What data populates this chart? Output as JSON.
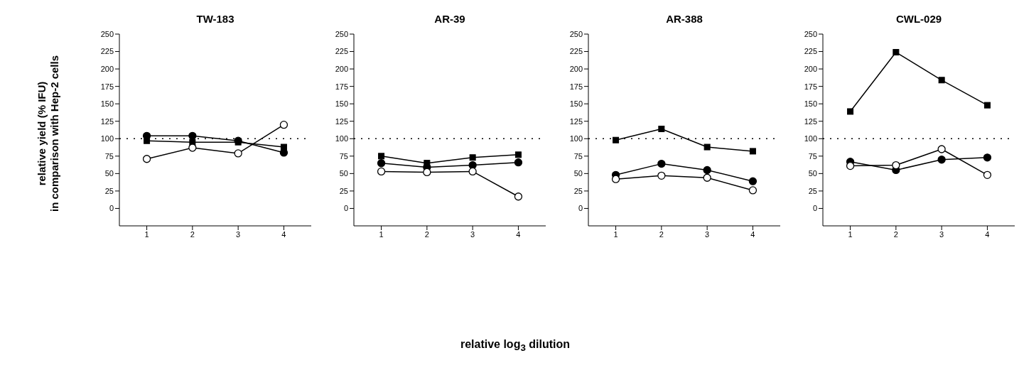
{
  "chart_data": [
    {
      "type": "line",
      "title": "TW-183",
      "ylabel": "relative yield (% IFU)\nin comparison with Hep-2 cells",
      "x": [
        1,
        2,
        3,
        4
      ],
      "xlim": [
        0.4,
        4.6
      ],
      "xticks": [
        1,
        2,
        3,
        4
      ],
      "ylim": [
        -25,
        250
      ],
      "yticks": [
        0,
        25,
        50,
        75,
        100,
        125,
        150,
        175,
        200,
        225,
        250
      ],
      "grid": false,
      "legend": false,
      "line_style": "solid",
      "ref_lines": [
        {
          "axis": "y",
          "value": 100,
          "line_style": "dotted",
          "color": "#000000"
        }
      ],
      "series": [
        {
          "color": "#000000",
          "marker": "circle",
          "values": [
            104,
            104,
            97,
            80
          ]
        },
        {
          "color": "#000000",
          "marker": "square",
          "values": [
            97,
            95,
            95,
            88
          ]
        },
        {
          "color": "#000000",
          "marker": "circle",
          "colors": [
            "#ffffff",
            "#ffffff",
            "#ffffff",
            "#ffffff"
          ],
          "values": [
            71,
            87,
            79,
            120
          ]
        }
      ]
    },
    {
      "type": "line",
      "title": "AR-39",
      "xlabel": "relative log$_{3}$ dilution",
      "x": [
        1,
        2,
        3,
        4
      ],
      "xlim": [
        0.4,
        4.6
      ],
      "xticks": [
        1,
        2,
        3,
        4
      ],
      "ylim": [
        -25,
        250
      ],
      "yticks": [
        0,
        25,
        50,
        75,
        100,
        125,
        150,
        175,
        200,
        225,
        250
      ],
      "grid": false,
      "legend": false,
      "line_style": "solid",
      "ref_lines": [
        {
          "axis": "y",
          "value": 100,
          "line_style": "dotted",
          "color": "#000000"
        }
      ],
      "series": [
        {
          "color": "#000000",
          "marker": "circle",
          "values": [
            65,
            59,
            62,
            66
          ]
        },
        {
          "color": "#000000",
          "marker": "square",
          "values": [
            75,
            65,
            73,
            77
          ]
        },
        {
          "color": "#000000",
          "marker": "circle",
          "colors": [
            "#ffffff",
            "#ffffff",
            "#ffffff",
            "#ffffff"
          ],
          "values": [
            53,
            52,
            53,
            17
          ]
        }
      ]
    },
    {
      "type": "line",
      "title": "AR-388",
      "x": [
        1,
        2,
        3,
        4
      ],
      "xlim": [
        0.4,
        4.6
      ],
      "xticks": [
        1,
        2,
        3,
        4
      ],
      "ylim": [
        -25,
        250
      ],
      "yticks": [
        0,
        25,
        50,
        75,
        100,
        125,
        150,
        175,
        200,
        225,
        250
      ],
      "grid": false,
      "legend": false,
      "line_style": "solid",
      "ref_lines": [
        {
          "axis": "y",
          "value": 100,
          "line_style": "dotted",
          "color": "#000000"
        }
      ],
      "series": [
        {
          "color": "#000000",
          "marker": "circle",
          "values": [
            48,
            64,
            55,
            39
          ]
        },
        {
          "color": "#000000",
          "marker": "square",
          "values": [
            98,
            114,
            88,
            82
          ]
        },
        {
          "color": "#000000",
          "marker": "circle",
          "colors": [
            "#ffffff",
            "#ffffff",
            "#ffffff",
            "#ffffff"
          ],
          "values": [
            42,
            47,
            44,
            26
          ]
        }
      ]
    },
    {
      "type": "line",
      "title": "CWL-029",
      "x": [
        1,
        2,
        3,
        4
      ],
      "xlim": [
        0.4,
        4.6
      ],
      "xticks": [
        1,
        2,
        3,
        4
      ],
      "ylim": [
        -25,
        250
      ],
      "yticks": [
        0,
        25,
        50,
        75,
        100,
        125,
        150,
        175,
        200,
        225,
        250
      ],
      "grid": false,
      "legend": false,
      "line_style": "solid",
      "ref_lines": [
        {
          "axis": "y",
          "value": 100,
          "line_style": "dotted",
          "color": "#000000"
        }
      ],
      "series": [
        {
          "color": "#000000",
          "marker": "circle",
          "values": [
            67,
            55,
            70,
            73
          ]
        },
        {
          "color": "#000000",
          "marker": "square",
          "values": [
            139,
            224,
            184,
            148
          ]
        },
        {
          "color": "#000000",
          "marker": "circle",
          "colors": [
            "#ffffff",
            "#ffffff",
            "#ffffff",
            "#ffffff"
          ],
          "values": [
            61,
            62,
            85,
            48
          ]
        }
      ]
    }
  ]
}
